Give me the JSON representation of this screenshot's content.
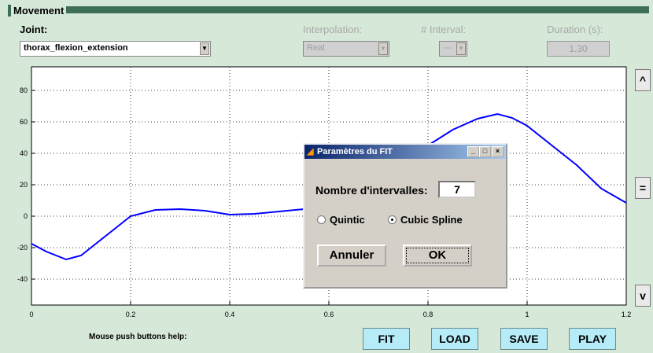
{
  "panel": {
    "title": "Movement"
  },
  "controls": {
    "joint_label": "Joint:",
    "joint_value": "thorax_flexion_extension",
    "interpolation_label": "Interpolation:",
    "interpolation_value": "Real",
    "interval_label": "# Interval:",
    "interval_value": "---",
    "duration_label": "Duration (s):",
    "duration_value": "1.30"
  },
  "side_buttons": [
    "^",
    "=",
    "v"
  ],
  "help_text": "Mouse push buttons help:",
  "buttons": [
    "FIT",
    "LOAD",
    "SAVE",
    "PLAY"
  ],
  "dialog": {
    "title": "Paramètres du FIT",
    "intervals_label": "Nombre d'intervalles:",
    "intervals_value": "7",
    "options": [
      "Quintic",
      "Cubic Spline"
    ],
    "selected": 1,
    "cancel": "Annuler",
    "ok": "OK"
  },
  "chart_data": {
    "type": "line",
    "x": [
      0,
      0.03,
      0.07,
      0.1,
      0.15,
      0.2,
      0.25,
      0.3,
      0.35,
      0.4,
      0.45,
      0.5,
      0.55,
      0.6,
      0.65,
      0.7,
      0.75,
      0.8,
      0.85,
      0.9,
      0.94,
      0.97,
      1.0,
      1.05,
      1.1,
      1.15,
      1.2
    ],
    "series": [
      {
        "color": "#0000ff",
        "values": [
          -17.5,
          -22.5,
          -27.5,
          -25,
          -12.5,
          0,
          4,
          4.5,
          3.5,
          1,
          1.5,
          3,
          4.5,
          8,
          15,
          25,
          35,
          45,
          55,
          62,
          65,
          62.5,
          57.5,
          45,
          32.5,
          17.5,
          8.5
        ]
      }
    ],
    "xlim": [
      0,
      1.2
    ],
    "xticks": [
      0,
      0.2,
      0.4,
      0.6,
      0.8,
      1,
      1.2
    ],
    "ylim": [
      -56.5,
      95
    ],
    "yticks": [
      -40,
      -20,
      0,
      20,
      40,
      60,
      80
    ],
    "grid": true
  }
}
